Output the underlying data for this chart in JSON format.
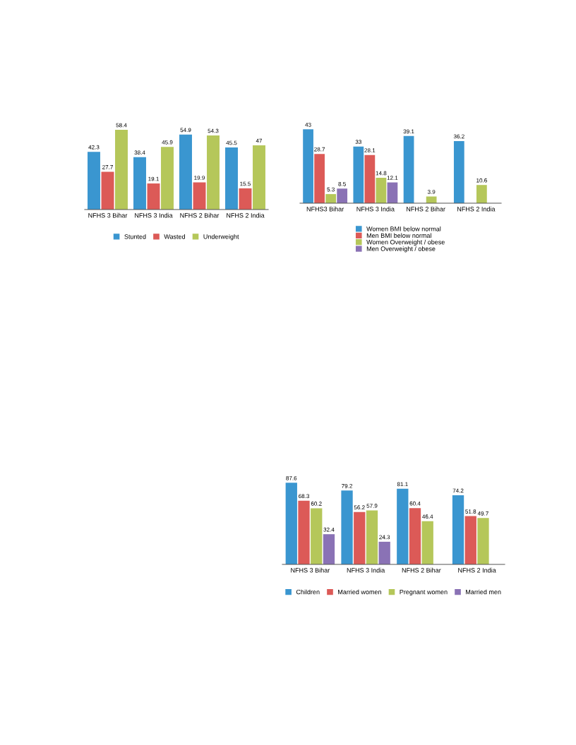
{
  "chart_data": [
    {
      "type": "bar",
      "categories": [
        "NFHS 3 Bihar",
        "NFHS 3 India",
        "NFHS 2 Bihar",
        "NFHS 2 India"
      ],
      "data_labels": true,
      "legend": "bottom",
      "series": [
        {
          "name": "Stunted",
          "color": "#3a96d0",
          "values": [
            42.3,
            38.4,
            54.9,
            45.5
          ]
        },
        {
          "name": "Wasted",
          "color": "#dc5a57",
          "values": [
            27.7,
            19.1,
            19.9,
            15.5
          ]
        },
        {
          "name": "Underweight",
          "color": "#b5c75a",
          "values": [
            58.4,
            45.9,
            54.3,
            47
          ]
        }
      ]
    },
    {
      "type": "bar",
      "categories": [
        "NFHS3 Bihar",
        "NFHS 3 India",
        "NFHS 2 Bihar",
        "NFHS 2 India"
      ],
      "data_labels": true,
      "legend": "bottom",
      "series": [
        {
          "name": "Women BMI below normal",
          "color": "#3a96d0",
          "values": [
            43,
            33,
            39.1,
            36.2
          ]
        },
        {
          "name": "Men BMI below normal",
          "color": "#dc5a57",
          "values": [
            28.7,
            28.1,
            null,
            null
          ]
        },
        {
          "name": "Women Overweight / obese",
          "color": "#b5c75a",
          "values": [
            5.3,
            14.8,
            3.9,
            10.6
          ]
        },
        {
          "name": "Men Overweight / obese",
          "color": "#8a72b5",
          "values": [
            8.5,
            12.1,
            null,
            null
          ]
        }
      ]
    },
    {
      "type": "bar",
      "categories": [
        "NFHS 3 Bihar",
        "NFHS 3 India",
        "NFHS 2 Bihar",
        "NFHS 2 India"
      ],
      "data_labels": true,
      "legend": "bottom",
      "series": [
        {
          "name": "Children",
          "color": "#3a96d0",
          "values": [
            87.6,
            79.2,
            81.1,
            74.2
          ]
        },
        {
          "name": "Married women",
          "color": "#dc5a57",
          "values": [
            68.3,
            56.2,
            60.4,
            51.8
          ]
        },
        {
          "name": "Pregnant women",
          "color": "#b5c75a",
          "values": [
            60.2,
            57.9,
            46.4,
            49.7
          ]
        },
        {
          "name": "Married men",
          "color": "#8a72b5",
          "values": [
            32.4,
            24.3,
            null,
            null
          ]
        }
      ]
    }
  ]
}
